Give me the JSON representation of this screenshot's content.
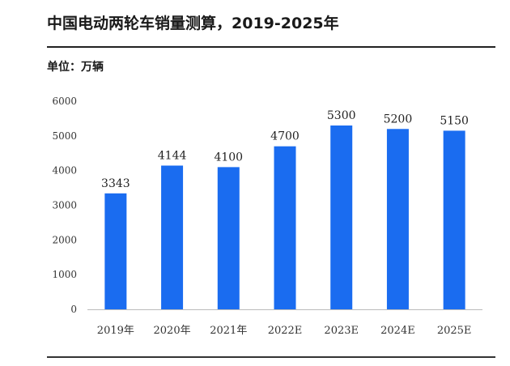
{
  "header": {
    "title": "中国电动两轮车销量测算，2019-2025年",
    "unit": "单位：万辆"
  },
  "chart_data": {
    "type": "bar",
    "categories": [
      "2019年",
      "2020年",
      "2021年",
      "2022E",
      "2023E",
      "2024E",
      "2025E"
    ],
    "values": [
      3343,
      4144,
      4100,
      4700,
      5300,
      5200,
      5150
    ],
    "ylim": [
      0,
      6000
    ],
    "yticks": [
      0,
      1000,
      2000,
      3000,
      4000,
      5000,
      6000
    ],
    "grid": false,
    "bar_color": "#1a6cf0",
    "data_labels": true
  }
}
